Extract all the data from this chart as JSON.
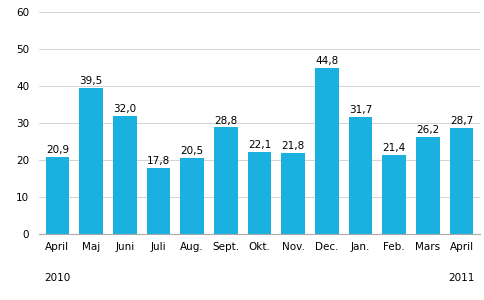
{
  "categories": [
    "April",
    "Maj",
    "Juni",
    "Juli",
    "Aug.",
    "Sept.",
    "Okt.",
    "Nov.",
    "Dec.",
    "Jan.",
    "Feb.",
    "Mars",
    "April"
  ],
  "values": [
    20.9,
    39.5,
    32.0,
    17.8,
    20.5,
    28.8,
    22.1,
    21.8,
    44.8,
    31.7,
    21.4,
    26.2,
    28.7
  ],
  "bar_color": "#1ab0e0",
  "ylim": [
    0,
    60
  ],
  "yticks": [
    0,
    10,
    20,
    30,
    40,
    50,
    60
  ],
  "year_labels": [
    [
      "2010",
      0
    ],
    [
      "2011",
      12
    ]
  ],
  "label_fontsize": 7.5,
  "value_fontsize": 7.5,
  "year_fontsize": 7.5,
  "bar_width": 0.7
}
